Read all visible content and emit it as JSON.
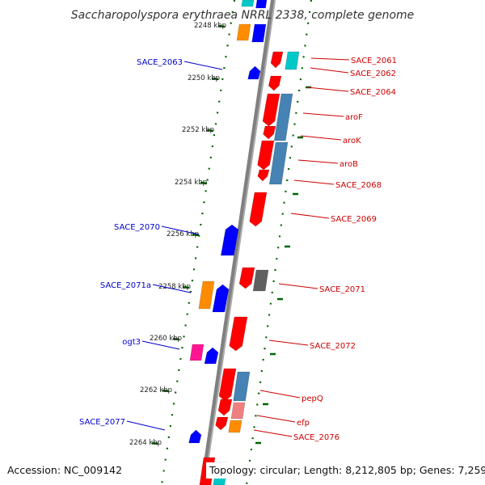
{
  "title": "Saccharopolyspora erythraea NRRL 2338, complete genome",
  "accession": "Accession: NC_009142",
  "topology": "Topology: circular; Length: 8,212,805 bp; Genes: 7,259",
  "colors": {
    "forward_red": "#ff0000",
    "reverse_blue": "#0000ff",
    "label_red": "#cc0000",
    "label_blue": "#0000cc",
    "orange": "#ff8c00",
    "cyan": "#00c8c8",
    "steel_blue": "#4682b4",
    "gray": "#606060",
    "magenta": "#ff1493",
    "pink": "#f08080",
    "tick_green": "#006400",
    "backbone": "#808080"
  },
  "ticks": [
    "2248 kbp",
    "2250 kbp",
    "2252 kbp",
    "2254 kbp",
    "2256 kbp",
    "2258 kbp",
    "2260 kbp",
    "2262 kbp",
    "2264 kbp"
  ],
  "right_labels": [
    "SACE_2061",
    "SACE_2062",
    "SACE_2064",
    "aroF",
    "aroK",
    "aroB",
    "SACE_2068",
    "SACE_2069",
    "SACE_2071",
    "SACE_2072",
    "pepQ",
    "efp",
    "SACE_2076"
  ],
  "left_labels": [
    "SACE_2063",
    "SACE_2070",
    "SACE_2071a",
    "ogt3",
    "SACE_2077"
  ]
}
